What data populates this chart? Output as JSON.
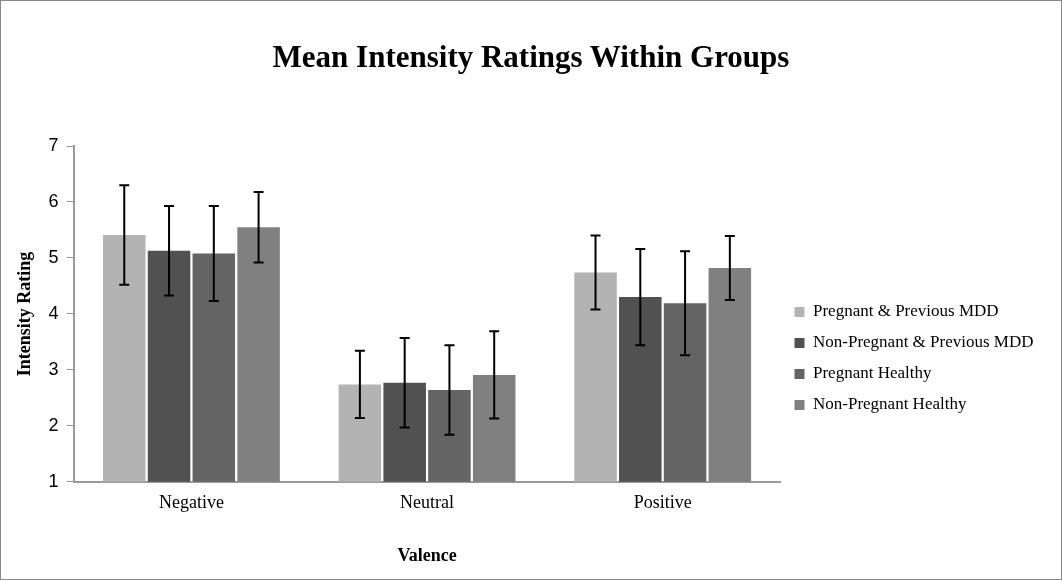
{
  "chart_data": {
    "type": "bar",
    "title": "Mean Intensity Ratings Within Groups",
    "xlabel": "Valence",
    "ylabel": "Intensity Rating",
    "categories": [
      "Negative",
      "Neutral",
      "Positive"
    ],
    "series": [
      {
        "name": "Pregnant & Previous MDD",
        "color": "#b3b3b3",
        "values": [
          5.41,
          2.74,
          4.74
        ],
        "errors": [
          0.89,
          0.6,
          0.66
        ]
      },
      {
        "name": "Non-Pregnant & Previous MDD",
        "color": "#515151",
        "values": [
          5.13,
          2.77,
          4.3
        ],
        "errors": [
          0.8,
          0.8,
          0.86
        ]
      },
      {
        "name": "Pregnant Healthy",
        "color": "#646464",
        "values": [
          5.08,
          2.64,
          4.19
        ],
        "errors": [
          0.85,
          0.8,
          0.93
        ]
      },
      {
        "name": "Non-Pregnant Healthy",
        "color": "#808080",
        "values": [
          5.55,
          2.91,
          4.82
        ],
        "errors": [
          0.63,
          0.78,
          0.57
        ]
      }
    ],
    "ylim": [
      1,
      7
    ],
    "yticks": [
      1,
      2,
      3,
      4,
      5,
      6,
      7
    ],
    "grid": false,
    "legend": "right"
  }
}
